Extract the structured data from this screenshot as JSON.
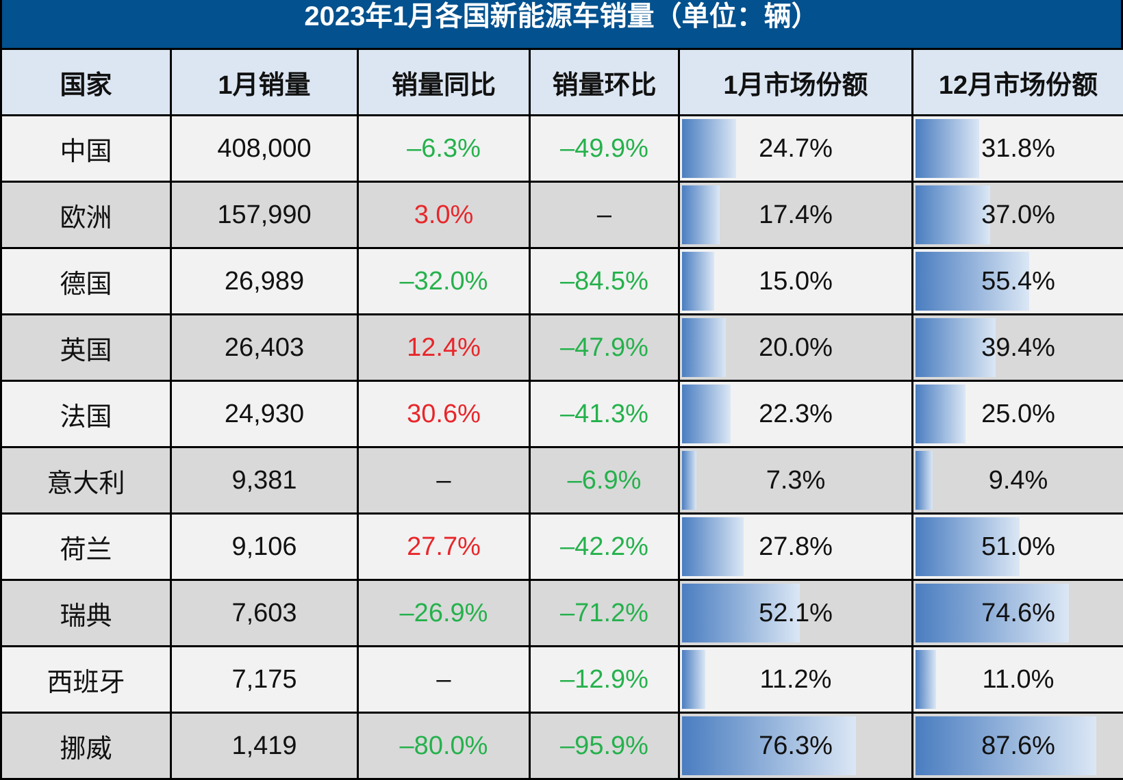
{
  "title": "2023年1月各国新能源车销量（单位：辆）",
  "headers": [
    "国家",
    "1月销量",
    "销量同比",
    "销量环比",
    "1月市场份额",
    "12月市场份额"
  ],
  "colors": {
    "title_bg": "#03518e",
    "header_bg": "#dce6f2",
    "row_odd": "#f2f2f2",
    "row_even": "#d9d9d9",
    "negative": "#25b14c",
    "positive": "#e8262a",
    "bar_start": "#4a7dc0",
    "bar_end": "#dbe7f5"
  },
  "rows": [
    {
      "country": "中国",
      "sales": "408,000",
      "yoy": "–6.3%",
      "mom": "–49.9%",
      "share_jan": "24.7%",
      "share_dec": "31.8%",
      "jan_pct": 24.7,
      "dec_pct": 31.8
    },
    {
      "country": "欧洲",
      "sales": "157,990",
      "yoy": "3.0%",
      "mom": "–",
      "share_jan": "17.4%",
      "share_dec": "37.0%",
      "jan_pct": 17.4,
      "dec_pct": 37.0
    },
    {
      "country": "德国",
      "sales": "26,989",
      "yoy": "–32.0%",
      "mom": "–84.5%",
      "share_jan": "15.0%",
      "share_dec": "55.4%",
      "jan_pct": 15.0,
      "dec_pct": 55.4
    },
    {
      "country": "英国",
      "sales": "26,403",
      "yoy": "12.4%",
      "mom": "–47.9%",
      "share_jan": "20.0%",
      "share_dec": "39.4%",
      "jan_pct": 20.0,
      "dec_pct": 39.4
    },
    {
      "country": "法国",
      "sales": "24,930",
      "yoy": "30.6%",
      "mom": "–41.3%",
      "share_jan": "22.3%",
      "share_dec": "25.0%",
      "jan_pct": 22.3,
      "dec_pct": 25.0
    },
    {
      "country": "意大利",
      "sales": "9,381",
      "yoy": "–",
      "mom": "–6.9%",
      "share_jan": "7.3%",
      "share_dec": "9.4%",
      "jan_pct": 7.3,
      "dec_pct": 9.4
    },
    {
      "country": "荷兰",
      "sales": "9,106",
      "yoy": "27.7%",
      "mom": "–42.2%",
      "share_jan": "27.8%",
      "share_dec": "51.0%",
      "jan_pct": 27.8,
      "dec_pct": 51.0
    },
    {
      "country": "瑞典",
      "sales": "7,603",
      "yoy": "–26.9%",
      "mom": "–71.2%",
      "share_jan": "52.1%",
      "share_dec": "74.6%",
      "jan_pct": 52.1,
      "dec_pct": 74.6
    },
    {
      "country": "西班牙",
      "sales": "7,175",
      "yoy": "–",
      "mom": "–12.9%",
      "share_jan": "11.2%",
      "share_dec": "11.0%",
      "jan_pct": 11.2,
      "dec_pct": 11.0
    },
    {
      "country": "挪威",
      "sales": "1,419",
      "yoy": "–80.0%",
      "mom": "–95.9%",
      "share_jan": "76.3%",
      "share_dec": "87.6%",
      "jan_pct": 76.3,
      "dec_pct": 87.6
    }
  ]
}
